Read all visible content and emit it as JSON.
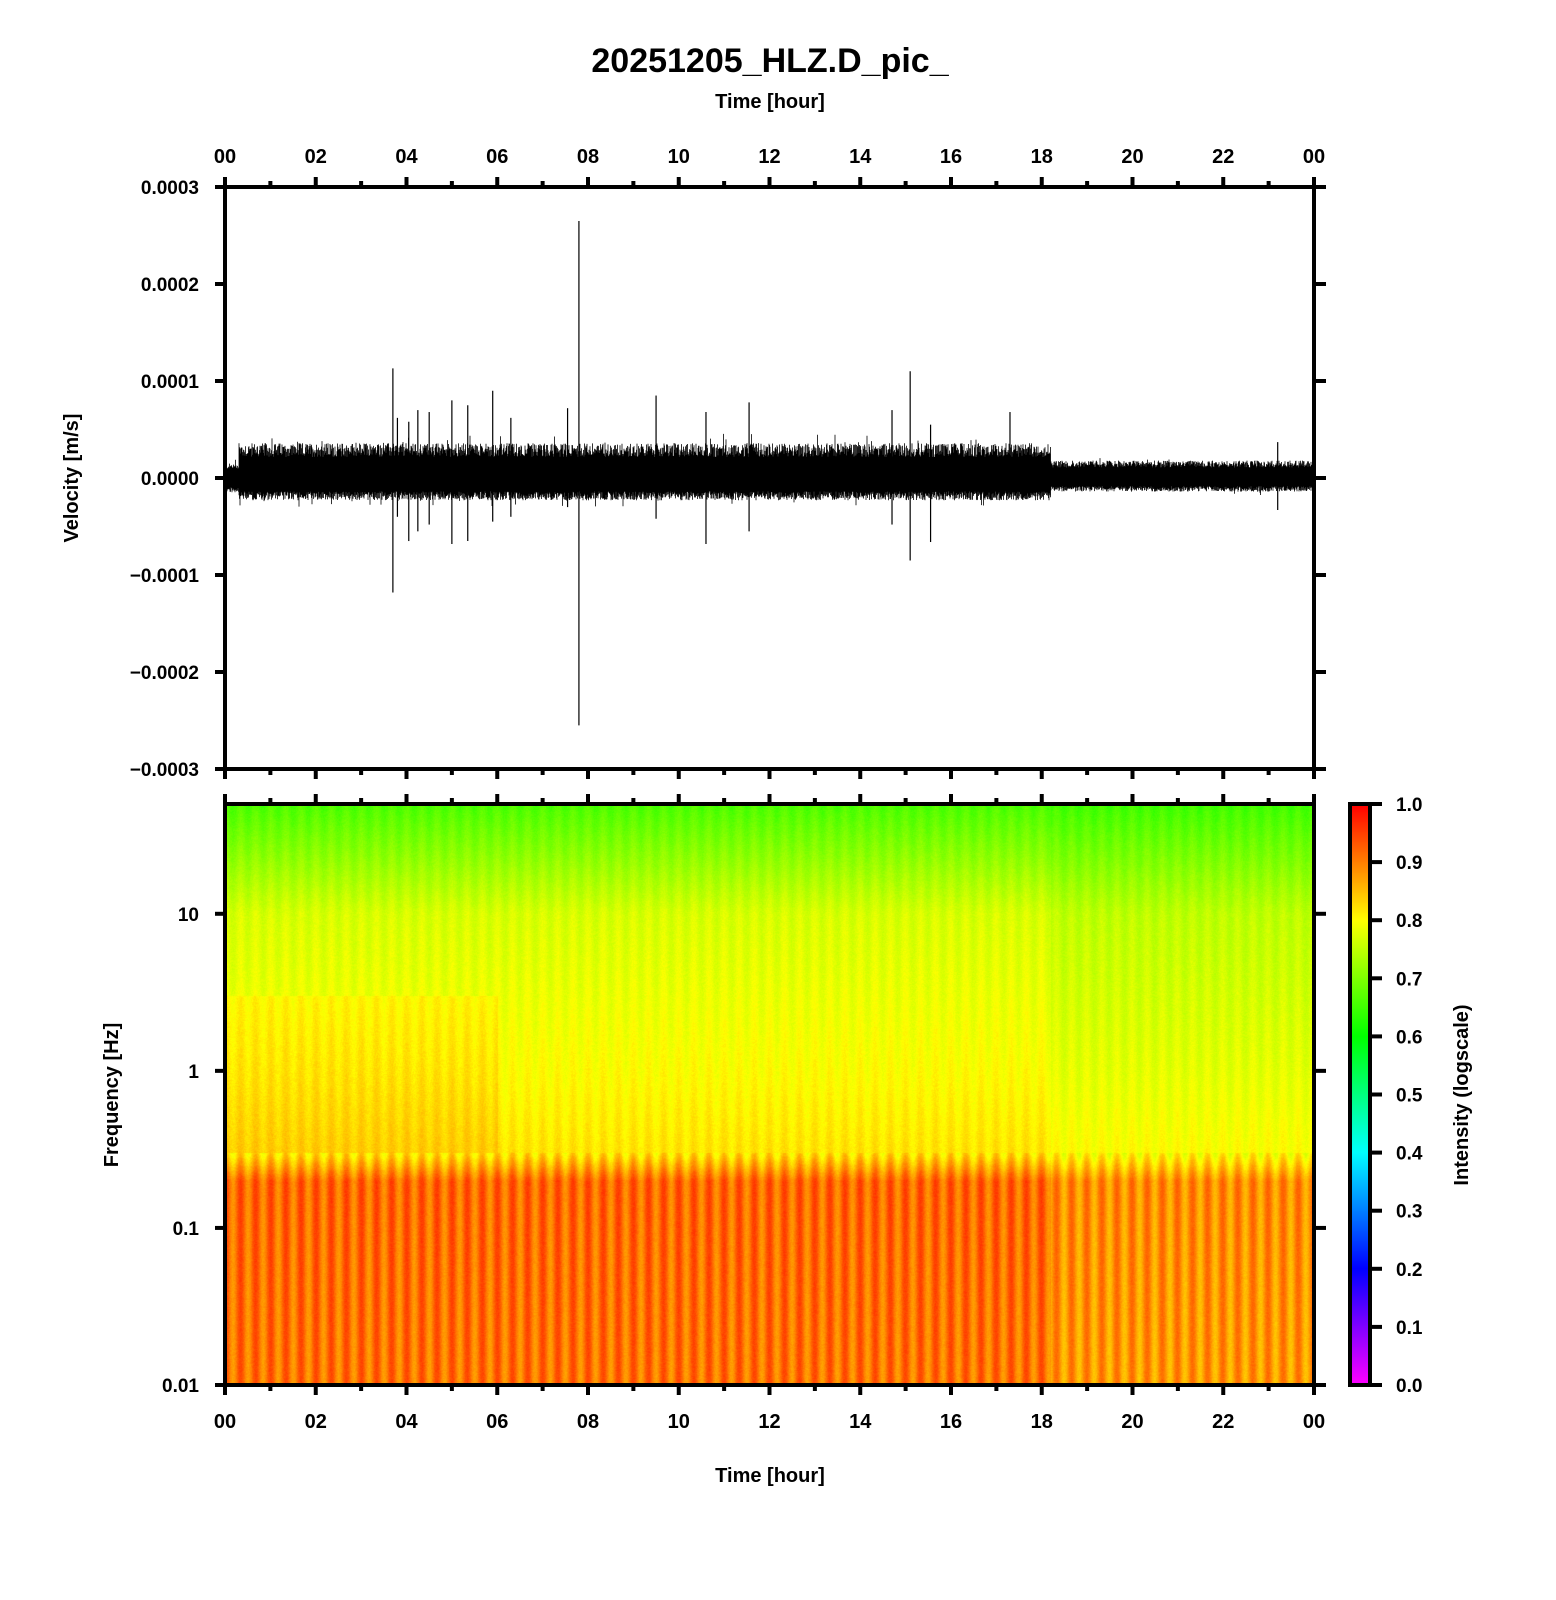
{
  "chart_data": [
    {
      "type": "line",
      "title": "20251205_HLZ.D_pic_",
      "xlabel": "Time [hour]",
      "ylabel": "Velocity [m/s]",
      "xlim": [
        0,
        24
      ],
      "ylim": [
        -0.0003,
        0.0003
      ],
      "x_ticks": [
        "00",
        "02",
        "04",
        "06",
        "08",
        "10",
        "12",
        "14",
        "16",
        "18",
        "20",
        "22",
        "00"
      ],
      "y_ticks": [
        "0.0003",
        "0.0002",
        "0.0001",
        "0.0000",
        "−0.0001",
        "−0.0002",
        "−0.0003"
      ],
      "y_tick_values": [
        0.0003,
        0.0002,
        0.0001,
        0,
        -0.0001,
        -0.0002,
        -0.0003
      ],
      "background_envelope": [
        {
          "from": 0.0,
          "to": 0.3,
          "max": 1.5e-05,
          "min": -1.5e-05
        },
        {
          "from": 0.3,
          "to": 18.2,
          "max": 3.6e-05,
          "min": -2.3e-05
        },
        {
          "from": 18.2,
          "to": 24.0,
          "max": 1.8e-05,
          "min": -1.4e-05
        }
      ],
      "events": [
        {
          "t": 3.7,
          "max": 0.000113,
          "min": -0.000118
        },
        {
          "t": 3.8,
          "max": 6.2e-05,
          "min": -4e-05
        },
        {
          "t": 4.05,
          "max": 5.8e-05,
          "min": -6.5e-05
        },
        {
          "t": 4.25,
          "max": 7e-05,
          "min": -5.5e-05
        },
        {
          "t": 4.5,
          "max": 6.8e-05,
          "min": -4.8e-05
        },
        {
          "t": 5.0,
          "max": 8e-05,
          "min": -6.8e-05
        },
        {
          "t": 5.35,
          "max": 7.5e-05,
          "min": -6.5e-05
        },
        {
          "t": 5.9,
          "max": 9e-05,
          "min": -4.5e-05
        },
        {
          "t": 6.3,
          "max": 6.2e-05,
          "min": -4e-05
        },
        {
          "t": 7.55,
          "max": 7.2e-05,
          "min": -3e-05
        },
        {
          "t": 7.8,
          "max": 0.000265,
          "min": -0.000255
        },
        {
          "t": 9.5,
          "max": 8.5e-05,
          "min": -4.2e-05
        },
        {
          "t": 10.6,
          "max": 6.8e-05,
          "min": -6.8e-05
        },
        {
          "t": 11.55,
          "max": 7.8e-05,
          "min": -5.5e-05
        },
        {
          "t": 14.7,
          "max": 7e-05,
          "min": -4.8e-05
        },
        {
          "t": 15.1,
          "max": 0.00011,
          "min": -8.5e-05
        },
        {
          "t": 15.55,
          "max": 5.5e-05,
          "min": -6.6e-05
        },
        {
          "t": 17.3,
          "max": 6.8e-05,
          "min": -2e-05
        },
        {
          "t": 23.2,
          "max": 3.7e-05,
          "min": -3.3e-05
        }
      ]
    },
    {
      "type": "heatmap",
      "xlabel": "Time [hour]",
      "ylabel": "Frequency [Hz]",
      "xlim": [
        0,
        24
      ],
      "ylim": [
        0.01,
        50
      ],
      "yscale": "log",
      "x_ticks": [
        "00",
        "02",
        "04",
        "06",
        "08",
        "10",
        "12",
        "14",
        "16",
        "18",
        "20",
        "22",
        "00"
      ],
      "y_ticks": [
        "10",
        "1",
        "0.1",
        "0.01"
      ],
      "y_tick_values": [
        10,
        1,
        0.1,
        0.01
      ],
      "colorbar": {
        "label": "Intensity (logscale)",
        "range": [
          0.0,
          1.0
        ],
        "ticks": [
          "1.0",
          "0.9",
          "0.8",
          "0.7",
          "0.6",
          "0.5",
          "0.4",
          "0.3",
          "0.2",
          "0.1",
          "0.0"
        ],
        "colormap": [
          "#ff00ff",
          "#0000ff",
          "#00ffff",
          "#00ff00",
          "#ffff00",
          "#ff0000"
        ]
      },
      "intensity_profile": [
        {
          "freq": 0.01,
          "day": 0.91,
          "after_18h": 0.88
        },
        {
          "freq": 0.2,
          "day": 0.92,
          "after_18h": 0.89
        },
        {
          "freq": 0.3,
          "day": 0.82,
          "after_18h": 0.8
        },
        {
          "freq": 1,
          "day": 0.8,
          "after_18h": 0.78
        },
        {
          "freq": 10,
          "day": 0.77,
          "after_18h": 0.75
        },
        {
          "freq": 50,
          "day": 0.66,
          "after_18h": 0.65
        }
      ],
      "stripe_period_hours": 0.333
    }
  ]
}
